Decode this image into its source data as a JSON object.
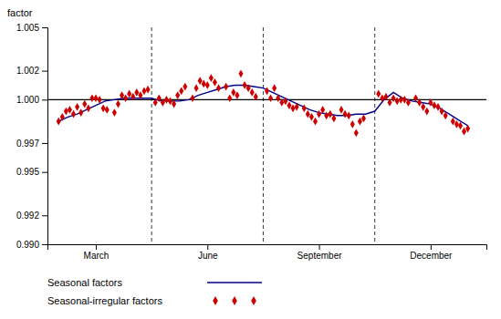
{
  "chart_data": {
    "type": "line",
    "ylabel": "factor",
    "xlim": [
      0.7,
      12.5
    ],
    "xticks": [
      {
        "value": 2,
        "label": "March"
      },
      {
        "value": 5,
        "label": "June"
      },
      {
        "value": 8,
        "label": "September"
      },
      {
        "value": 11,
        "label": "December"
      }
    ],
    "ylim": [
      0.99,
      1.005
    ],
    "yticks": [
      {
        "value": 0.99,
        "label": "0.990"
      },
      0.992,
      0.995,
      0.997,
      {
        "value": 1.0,
        "label": "1.000"
      },
      1.002,
      1.005
    ],
    "hline": 1.0,
    "vlines": [
      3.5,
      6.5,
      9.5
    ],
    "grid": false,
    "legend": "bottom",
    "series": [
      {
        "name": "Seasonal factors",
        "type": "line",
        "color": "#00008B",
        "x": [
          1,
          1.25,
          1.5,
          1.75,
          2,
          2.25,
          2.5,
          2.75,
          3,
          3.25,
          3.5,
          3.75,
          4,
          4.25,
          4.5,
          4.75,
          5,
          5.25,
          5.5,
          5.75,
          6,
          6.25,
          6.5,
          6.75,
          7,
          7.25,
          7.5,
          7.75,
          8,
          8.25,
          8.5,
          8.75,
          9,
          9.25,
          9.5,
          9.75,
          10,
          10.25,
          10.5,
          10.75,
          11,
          11.25,
          11.5,
          11.75,
          12
        ],
        "values": [
          0.9985,
          0.9988,
          0.999,
          0.9993,
          0.9996,
          0.9999,
          1.0,
          1.0001,
          1.0001,
          1.0001,
          1.0001,
          0.9999,
          0.9999,
          0.9999,
          1.0,
          1.0003,
          1.0005,
          1.0007,
          1.0009,
          1.001,
          1.001,
          1.0009,
          1.0008,
          1.0005,
          1.0002,
          0.9999,
          0.9996,
          0.9993,
          0.9991,
          0.999,
          0.9989,
          0.9989,
          0.999,
          0.999,
          0.9992,
          1.0,
          1.0005,
          1.0001,
          0.9999,
          0.9998,
          0.9997,
          0.9994,
          0.999,
          0.9986,
          0.9982
        ]
      },
      {
        "name": "Seasonal-irregular factors",
        "type": "scatter",
        "color": "#CC0000",
        "marker": "diamond",
        "x": [
          1.0,
          1.1,
          1.2,
          1.3,
          1.4,
          1.5,
          1.6,
          1.7,
          1.8,
          1.9,
          2.0,
          2.1,
          2.2,
          2.3,
          2.5,
          2.6,
          2.7,
          2.8,
          2.9,
          3.0,
          3.1,
          3.2,
          3.3,
          3.4,
          3.6,
          3.7,
          3.8,
          3.9,
          4.0,
          4.1,
          4.2,
          4.3,
          4.4,
          4.6,
          4.7,
          4.8,
          4.9,
          5.0,
          5.1,
          5.2,
          5.3,
          5.5,
          5.6,
          5.7,
          5.8,
          5.9,
          6.0,
          6.1,
          6.2,
          6.3,
          6.6,
          6.7,
          6.8,
          6.9,
          7.0,
          7.1,
          7.2,
          7.3,
          7.4,
          7.6,
          7.7,
          7.8,
          7.9,
          8.0,
          8.1,
          8.2,
          8.3,
          8.4,
          8.6,
          8.7,
          8.8,
          8.9,
          9.0,
          9.1,
          9.2,
          9.6,
          9.7,
          9.8,
          9.9,
          10.0,
          10.1,
          10.2,
          10.3,
          10.4,
          10.6,
          10.7,
          10.8,
          10.9,
          11.0,
          11.1,
          11.2,
          11.3,
          11.4,
          11.6,
          11.7,
          11.8,
          11.9,
          12.0
        ],
        "values": [
          0.9985,
          0.9988,
          0.9992,
          0.9993,
          0.999,
          0.9995,
          0.9991,
          0.9997,
          0.9994,
          1.0001,
          1.0001,
          1.0,
          0.9994,
          0.9993,
          0.9991,
          0.9997,
          1.0003,
          1.0001,
          1.0004,
          1.0002,
          1.0005,
          1.0003,
          1.0006,
          1.0007,
          0.9998,
          1.0001,
          0.9998,
          1.0,
          0.9999,
          0.9997,
          1.0003,
          1.0006,
          1.0009,
          1.0001,
          1.0008,
          1.0013,
          1.0011,
          1.001,
          1.0015,
          1.0012,
          1.0008,
          1.0009,
          1.0001,
          1.0005,
          1.0003,
          1.0018,
          1.001,
          1.0008,
          1.0005,
          1.0002,
          1.0006,
          1.0001,
          1.0008,
          1.0001,
          0.9998,
          0.9999,
          0.9996,
          0.9994,
          0.9995,
          0.9994,
          0.999,
          0.9988,
          0.9985,
          0.999,
          0.9993,
          0.9989,
          0.999,
          0.9987,
          0.9993,
          0.999,
          0.9989,
          0.9983,
          0.9977,
          0.9985,
          0.9987,
          1.0004,
          1.0001,
          1.0002,
          0.9998,
          1.0001,
          0.9999,
          1.0,
          1.0,
          0.9998,
          1.0001,
          0.9998,
          0.9995,
          0.9992,
          0.9998,
          0.9996,
          0.9995,
          0.9992,
          0.9989,
          0.9985,
          0.9983,
          0.9982,
          0.9978,
          0.998
        ]
      }
    ]
  }
}
